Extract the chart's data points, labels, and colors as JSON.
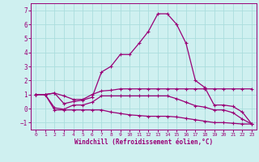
{
  "xlabel": "Windchill (Refroidissement éolien,°C)",
  "xlim": [
    -0.5,
    23.5
  ],
  "ylim": [
    -1.5,
    7.5
  ],
  "xticks": [
    0,
    1,
    2,
    3,
    4,
    5,
    6,
    7,
    8,
    9,
    10,
    11,
    12,
    13,
    14,
    15,
    16,
    17,
    18,
    19,
    20,
    21,
    22,
    23
  ],
  "yticks": [
    -1,
    0,
    1,
    2,
    3,
    4,
    5,
    6,
    7
  ],
  "background_color": "#cff0f0",
  "grid_color": "#aadddd",
  "line_color": "#990077",
  "lines": [
    [
      1.0,
      1.0,
      1.1,
      0.9,
      0.65,
      0.65,
      1.0,
      1.25,
      1.3,
      1.4,
      1.4,
      1.4,
      1.4,
      1.4,
      1.4,
      1.4,
      1.4,
      1.4,
      1.4,
      1.4,
      1.4,
      1.4,
      1.4,
      1.4
    ],
    [
      1.0,
      1.0,
      1.1,
      0.35,
      0.5,
      0.6,
      0.8,
      2.6,
      3.0,
      3.85,
      3.85,
      4.65,
      5.5,
      6.75,
      6.75,
      6.0,
      4.65,
      2.0,
      1.5,
      0.25,
      0.25,
      0.15,
      -0.25,
      -1.1
    ],
    [
      1.0,
      1.0,
      0.05,
      -0.05,
      0.25,
      0.25,
      0.45,
      0.9,
      0.9,
      0.9,
      0.9,
      0.9,
      0.9,
      0.9,
      0.9,
      0.7,
      0.45,
      0.2,
      0.1,
      -0.1,
      -0.1,
      -0.3,
      -0.75,
      -1.1
    ],
    [
      1.0,
      1.0,
      -0.1,
      -0.1,
      -0.1,
      -0.1,
      -0.1,
      -0.1,
      -0.25,
      -0.35,
      -0.45,
      -0.5,
      -0.55,
      -0.55,
      -0.55,
      -0.6,
      -0.7,
      -0.8,
      -0.9,
      -1.0,
      -1.0,
      -1.05,
      -1.1,
      -1.1
    ]
  ]
}
